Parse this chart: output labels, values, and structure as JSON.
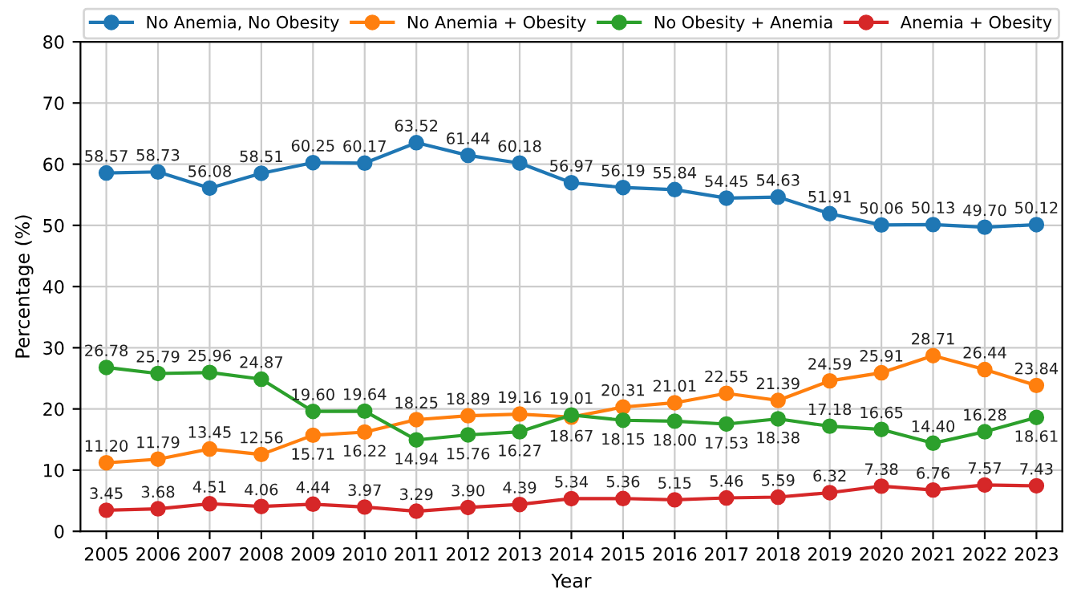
{
  "chart_data": {
    "type": "line",
    "xlabel": "Year",
    "ylabel": "Percentage (%)",
    "x": [
      2005,
      2006,
      2007,
      2008,
      2009,
      2010,
      2011,
      2012,
      2013,
      2014,
      2015,
      2016,
      2017,
      2018,
      2019,
      2020,
      2021,
      2022,
      2023
    ],
    "series": [
      {
        "name": "No Anemia, No Obesity",
        "color": "#1f77b4",
        "values": [
          58.57,
          58.73,
          56.08,
          58.51,
          60.25,
          60.17,
          63.52,
          61.44,
          60.18,
          56.97,
          56.19,
          55.84,
          54.45,
          54.63,
          51.91,
          50.06,
          50.13,
          49.7,
          50.12
        ],
        "value_labels": [
          "58.57",
          "58.73",
          "56.08",
          "58.51",
          "60.25",
          "60.17",
          "63.52",
          "61.44",
          "60.18",
          "56.97",
          "56.19",
          "55.84",
          "54.45",
          "54.63",
          "51.91",
          "50.06",
          "50.13",
          "49.70",
          "50.12"
        ]
      },
      {
        "name": "No Anemia + Obesity",
        "color": "#ff7f0e",
        "values": [
          11.2,
          11.79,
          13.45,
          12.56,
          15.71,
          16.22,
          18.25,
          18.89,
          19.16,
          18.67,
          20.31,
          21.01,
          22.55,
          21.39,
          24.59,
          25.91,
          28.71,
          26.44,
          23.84
        ],
        "value_labels": [
          "11.20",
          "11.79",
          "13.45",
          "12.56",
          "15.71",
          "16.22",
          "18.25",
          "18.89",
          "19.16",
          "18.67",
          "20.31",
          "21.01",
          "22.55",
          "21.39",
          "24.59",
          "25.91",
          "28.71",
          "26.44",
          "23.84"
        ]
      },
      {
        "name": "No Obesity + Anemia",
        "color": "#2ca02c",
        "values": [
          26.78,
          25.79,
          25.96,
          24.87,
          19.6,
          19.64,
          14.94,
          15.76,
          16.27,
          19.01,
          18.15,
          18.0,
          17.53,
          18.38,
          17.18,
          16.65,
          14.4,
          16.28,
          18.61
        ],
        "value_labels": [
          "26.78",
          "25.79",
          "25.96",
          "24.87",
          "19.60",
          "19.64",
          "14.94",
          "15.76",
          "16.27",
          "19.01",
          "18.15",
          "18.00",
          "17.53",
          "18.38",
          "17.18",
          "16.65",
          "14.40",
          "16.28",
          "18.61"
        ]
      },
      {
        "name": "Anemia + Obesity",
        "color": "#d62728",
        "values": [
          3.45,
          3.68,
          4.51,
          4.06,
          4.44,
          3.97,
          3.29,
          3.9,
          4.39,
          5.34,
          5.36,
          5.15,
          5.46,
          5.59,
          6.32,
          7.38,
          6.76,
          7.57,
          7.43
        ],
        "value_labels": [
          "3.45",
          "3.68",
          "4.51",
          "4.06",
          "4.44",
          "3.97",
          "3.29",
          "3.90",
          "4.39",
          "5.34",
          "5.36",
          "5.15",
          "5.46",
          "5.59",
          "6.32",
          "7.38",
          "6.76",
          "7.57",
          "7.43"
        ]
      }
    ],
    "xlim": [
      2004.5,
      2023.5
    ],
    "xticks": [
      2005,
      2006,
      2007,
      2008,
      2009,
      2010,
      2011,
      2012,
      2013,
      2014,
      2015,
      2016,
      2017,
      2018,
      2019,
      2020,
      2021,
      2022,
      2023
    ],
    "ylim": [
      0,
      80
    ],
    "yticks": [
      0,
      10,
      20,
      30,
      40,
      50,
      60,
      70,
      80
    ],
    "grid": true,
    "legend": "top",
    "marker": "circle",
    "line_style": "solid"
  }
}
